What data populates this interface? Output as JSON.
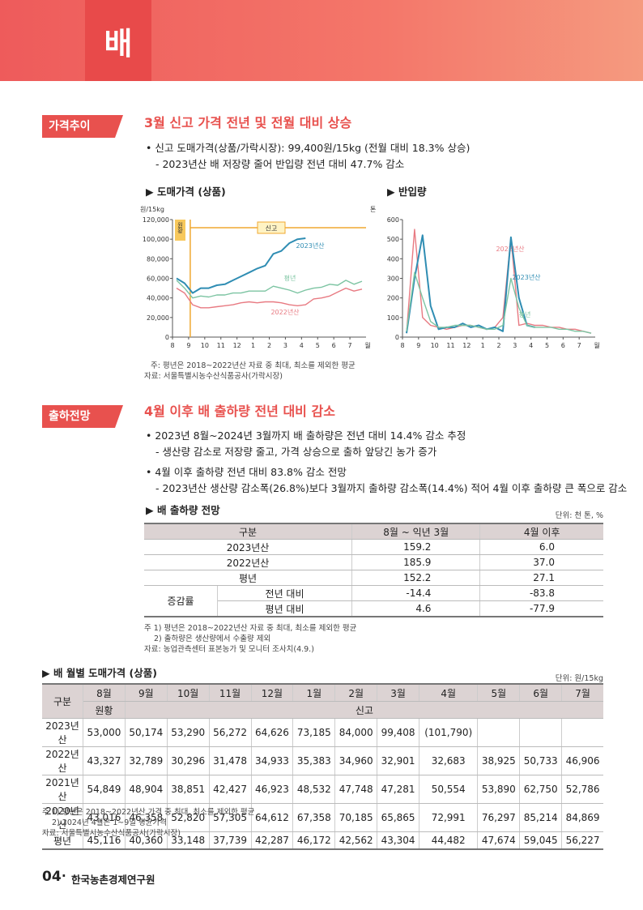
{
  "header": {
    "title": "배"
  },
  "section1": {
    "tag": "가격추이",
    "heading": "3월 신고 가격 전년 및 전월 대비 상승",
    "bullets": [
      "• 신고 도매가격(상품/가락시장): 99,400원/15kg (전월 대비 18.3% 상승)",
      "- 2023년산 배 저장량 줄어 반입량 전년 대비 47.7% 감소"
    ],
    "captions": [
      "▶ 도매가격 (상품)",
      "▶ 반입량"
    ],
    "notes": [
      "주: 평년은 2018~2022년산 자료 중 최대, 최소를 제외한 평균",
      "자료: 서울특별시농수산식품공사(가락시장)"
    ]
  },
  "chart_data": [
    {
      "type": "line",
      "y_unit": "원/15kg",
      "x_unit": "월",
      "annotations": [
        "원황",
        "신고"
      ],
      "categories": [
        "8",
        null,
        "9",
        null,
        "10",
        null,
        "11",
        null,
        "12",
        null,
        "1",
        null,
        "2",
        null,
        "3",
        null,
        "4",
        null,
        "5",
        null,
        "6",
        null,
        "7",
        null
      ],
      "ylim": [
        0,
        120000
      ],
      "yticks": [
        0,
        {
          "value": 20000,
          "label": "20,000"
        },
        {
          "value": 40000,
          "label": "40,000"
        },
        {
          "value": 60000,
          "label": "60,000"
        },
        {
          "value": 80000,
          "label": "80,000"
        },
        {
          "value": 100000,
          "label": "100,000"
        },
        {
          "value": 120000,
          "label": "120,000"
        }
      ],
      "series": [
        {
          "name": "2023년산",
          "color": "#2f8db3",
          "values": [
            60000,
            55000,
            45000,
            50000,
            50000,
            53000,
            54000,
            58000,
            62000,
            66000,
            70000,
            73000,
            85000,
            88000,
            96000,
            100000,
            101000,
            null,
            null,
            null,
            null,
            null,
            null,
            null
          ]
        },
        {
          "name": "평년",
          "color": "#7cc4a2",
          "values": [
            58000,
            50000,
            40000,
            42000,
            41000,
            43000,
            43000,
            45000,
            45000,
            47000,
            47000,
            47000,
            52000,
            50000,
            48000,
            45000,
            48000,
            50000,
            51000,
            54000,
            53000,
            58000,
            54000,
            57000
          ]
        },
        {
          "name": "2022년산",
          "color": "#e87a82",
          "values": [
            50000,
            45000,
            33000,
            30000,
            30000,
            31000,
            32000,
            33000,
            35000,
            36000,
            35000,
            36000,
            36000,
            35000,
            33000,
            32000,
            33000,
            39000,
            40000,
            42000,
            46000,
            50000,
            47000,
            49000
          ]
        }
      ]
    },
    {
      "type": "line",
      "y_unit": "톤",
      "x_unit": "월",
      "categories": [
        "8",
        null,
        "9",
        null,
        "10",
        null,
        "11",
        null,
        "12",
        null,
        "1",
        null,
        "2",
        null,
        "3",
        null,
        "4",
        null,
        "5",
        null,
        "6",
        null,
        "7",
        null
      ],
      "ylim": [
        0,
        600
      ],
      "yticks": [
        0,
        100,
        200,
        300,
        400,
        500,
        600
      ],
      "series": [
        {
          "name": "2022년산",
          "color": "#e87a82",
          "values": [
            20,
            550,
            100,
            60,
            50,
            40,
            50,
            60,
            60,
            50,
            40,
            50,
            100,
            510,
            60,
            70,
            60,
            60,
            50,
            50,
            40,
            40,
            30,
            20
          ]
        },
        {
          "name": "2023년산",
          "color": "#2f8db3",
          "values": [
            20,
            300,
            520,
            160,
            40,
            50,
            50,
            70,
            50,
            60,
            40,
            50,
            30,
            510,
            200,
            60,
            50,
            null,
            null,
            null,
            null,
            null,
            null,
            null
          ]
        },
        {
          "name": "평년",
          "color": "#7cc4a2",
          "values": [
            30,
            330,
            200,
            80,
            50,
            50,
            60,
            60,
            60,
            50,
            40,
            40,
            60,
            300,
            150,
            60,
            50,
            50,
            50,
            40,
            40,
            30,
            30,
            20
          ]
        }
      ]
    }
  ],
  "section2": {
    "tag": "출하전망",
    "heading": "4월 이후 배 출하량 전년 대비 감소",
    "bullets": [
      "• 2023년 8월~2024년 3월까지 배 출하량은 전년 대비 14.4% 감소 추정",
      "- 생산량 감소로 저장량 줄고, 가격 상승으로 출하 앞당긴 농가 증가",
      "• 4월 이후 출하량 전년 대비 83.8% 감소 전망",
      "- 2023년산 생산량 감소폭(26.8%)보다 3월까지 출하량 감소폭(14.4%) 적어 4월 이후 출하량 큰 폭으로 감소"
    ],
    "caption": "▶ 배 출하량 전망",
    "unit": "단위: 천 톤, %",
    "table": {
      "header": [
        "구분",
        "8월 ~ 익년 3월",
        "4월 이후"
      ],
      "rows": [
        [
          "2023년산",
          "159.2",
          "6.0"
        ],
        [
          "2022년산",
          "185.9",
          "37.0"
        ],
        [
          "평년",
          "152.2",
          "27.1"
        ]
      ],
      "change": {
        "label": "증감률",
        "rows": [
          [
            "전년 대비",
            "-14.4",
            "-83.8"
          ],
          [
            "평년 대비",
            "4.6",
            "-77.9"
          ]
        ]
      }
    },
    "notes": [
      "주 1) 평년은 2018~2022년산 자료 중 최대, 최소를 제외한 평균",
      "2) 출하량은 생산량에서 수출량 제외",
      "자료: 농업관측센터 표본농가 및 모니터 조사치(4.9.)"
    ]
  },
  "section3": {
    "caption": "▶ 배 월별 도매가격 (상품)",
    "unit": "단위: 원/15kg",
    "table": {
      "corner": "구분",
      "months": [
        "8월",
        "9월",
        "10월",
        "11월",
        "12월",
        "1월",
        "2월",
        "3월",
        "4월",
        "5월",
        "6월",
        "7월"
      ],
      "varieties": [
        "원황",
        "신고"
      ],
      "rows": [
        {
          "name": "2023년산",
          "values": [
            "53,000",
            "50,174",
            "53,290",
            "56,272",
            "64,626",
            "73,185",
            "84,000",
            "99,408",
            "(101,790)"
          ]
        },
        {
          "name": "2022년산",
          "values": [
            "43,327",
            "32,789",
            "30,296",
            "31,478",
            "34,933",
            "35,383",
            "34,960",
            "32,901",
            "32,683",
            "38,925",
            "50,733",
            "46,906"
          ]
        },
        {
          "name": "2021년산",
          "values": [
            "54,849",
            "48,904",
            "38,851",
            "42,427",
            "46,923",
            "48,532",
            "47,748",
            "47,281",
            "50,554",
            "53,890",
            "62,750",
            "52,786"
          ]
        },
        {
          "name": "2020년산",
          "values": [
            "43,016",
            "46,358",
            "52,820",
            "57,305",
            "64,612",
            "67,358",
            "70,185",
            "65,865",
            "72,991",
            "76,297",
            "85,214",
            "84,869"
          ]
        },
        {
          "name": "평년",
          "values": [
            "45,116",
            "40,360",
            "33,148",
            "37,739",
            "42,287",
            "46,172",
            "42,562",
            "43,304",
            "44,482",
            "47,674",
            "59,045",
            "56,227"
          ]
        }
      ]
    },
    "notes": [
      "주 1) 평년은 2018~2022년산 가격 중 최대, 최소를 제외한 평균",
      "2) 2024년 4월은 1~9일 평균가격",
      "자료: 서울특별시농수산식품공사(가락시장)"
    ]
  },
  "footer": {
    "page": "04",
    "org": "한국농촌경제연구원"
  }
}
